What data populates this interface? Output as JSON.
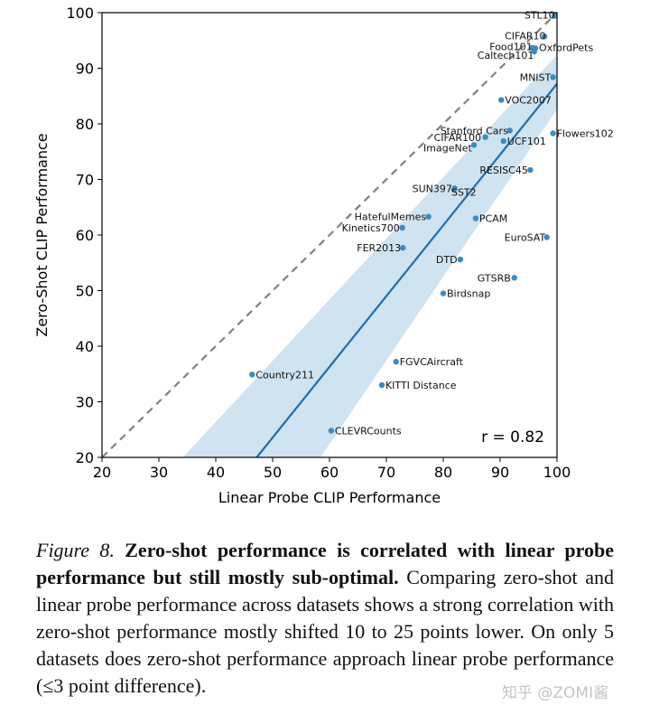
{
  "chart_data": {
    "type": "scatter",
    "xlabel": "Linear Probe CLIP Performance",
    "ylabel": "Zero-Shot CLIP Performance",
    "xlim": [
      20,
      100
    ],
    "ylim": [
      20,
      100
    ],
    "xticks": [
      "20",
      "30",
      "40",
      "50",
      "60",
      "70",
      "80",
      "90",
      "100"
    ],
    "yticks": [
      "20",
      "30",
      "40",
      "50",
      "60",
      "70",
      "80",
      "90",
      "100"
    ],
    "annotation": "r = 0.82",
    "identity_line": {
      "from": [
        20,
        20
      ],
      "to": [
        100,
        100
      ],
      "style": "dashed"
    },
    "fit_line": {
      "from": [
        47.2,
        20
      ],
      "to": [
        100,
        87.2
      ]
    },
    "confidence_band": {
      "lower": [
        [
          58.4,
          20
        ],
        [
          100,
          82.6
        ]
      ],
      "upper": [
        [
          34.2,
          20
        ],
        [
          100,
          92.4
        ]
      ]
    },
    "points": [
      {
        "label": "STL10",
        "x": 99.5,
        "y": 99.4
      },
      {
        "label": "CIFAR10",
        "x": 97.8,
        "y": 95.7
      },
      {
        "label": "Food101",
        "x": 95.6,
        "y": 93.7
      },
      {
        "label": "OxfordPets",
        "x": 96.2,
        "y": 93.6
      },
      {
        "label": "Caltech101",
        "x": 96.0,
        "y": 93.0
      },
      {
        "label": "MNIST",
        "x": 99.3,
        "y": 88.4
      },
      {
        "label": "VOC2007",
        "x": 90.2,
        "y": 84.3
      },
      {
        "label": "Flowers102",
        "x": 99.3,
        "y": 78.3
      },
      {
        "label": "Stanford Cars",
        "x": 91.7,
        "y": 78.8
      },
      {
        "label": "CIFAR100",
        "x": 87.4,
        "y": 77.6
      },
      {
        "label": "ImageNet",
        "x": 85.4,
        "y": 76.2
      },
      {
        "label": "UCF101",
        "x": 90.6,
        "y": 76.9
      },
      {
        "label": "RESISC45",
        "x": 95.3,
        "y": 71.7
      },
      {
        "label": "SUN397",
        "x": 82.0,
        "y": 68.4
      },
      {
        "label": "SST2",
        "x": 81.9,
        "y": 68.2
      },
      {
        "label": "HatefulMemes",
        "x": 77.4,
        "y": 63.3
      },
      {
        "label": "Kinetics700",
        "x": 72.8,
        "y": 61.3
      },
      {
        "label": "PCAM",
        "x": 85.7,
        "y": 63.0
      },
      {
        "label": "EuroSAT",
        "x": 98.2,
        "y": 59.6
      },
      {
        "label": "FER2013",
        "x": 72.9,
        "y": 57.7
      },
      {
        "label": "DTD",
        "x": 83.0,
        "y": 55.6
      },
      {
        "label": "GTSRB",
        "x": 92.5,
        "y": 52.3
      },
      {
        "label": "Birdsnap",
        "x": 80.0,
        "y": 49.5
      },
      {
        "label": "FGVCAircraft",
        "x": 71.7,
        "y": 37.2
      },
      {
        "label": "Country211",
        "x": 46.4,
        "y": 34.9
      },
      {
        "label": "KITTI Distance",
        "x": 69.2,
        "y": 33.0
      },
      {
        "label": "CLEVRCounts",
        "x": 60.3,
        "y": 24.8
      }
    ]
  },
  "caption": {
    "figure_label": "Figure 8.",
    "bold_text": "Zero-shot performance is correlated with linear probe performance but still mostly sub-optimal.",
    "body_text": "Comparing zero-shot and linear probe performance across datasets shows a strong correlation with zero-shot performance mostly shifted 10 to 25 points lower. On only 5 datasets does zero-shot performance approach linear probe performance (≤3 point difference)."
  },
  "watermark": "知乎 @ZOMI酱",
  "colors": {
    "point": "#3b8bc2",
    "fit_line": "#1f6fae",
    "band": "#cfe3f1",
    "identity_line": "#808080"
  }
}
